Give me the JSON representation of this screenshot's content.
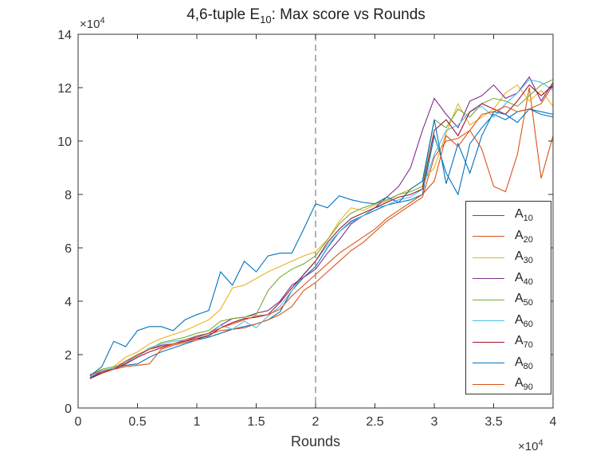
{
  "chart_data": {
    "type": "line",
    "title_main": "4,6-tuple E",
    "title_sub": "10",
    "title_rest": ": Max score vs Rounds",
    "xlabel": "Rounds",
    "ylabel": "",
    "x_exponent_label": "×10",
    "y_exponent_label": "×10",
    "exponent_power": "4",
    "xlim": [
      0,
      40000
    ],
    "ylim": [
      0,
      140000
    ],
    "xticks": [
      "0",
      "0.5",
      "1",
      "1.5",
      "2",
      "2.5",
      "3",
      "3.5",
      "4"
    ],
    "yticks": [
      "0",
      "2",
      "4",
      "6",
      "8",
      "10",
      "12",
      "14"
    ],
    "vline_x": 20000,
    "legend_position": "bottom-right",
    "grid": false,
    "x": [
      1000,
      2000,
      3000,
      4000,
      5000,
      6000,
      7000,
      8000,
      9000,
      10000,
      11000,
      12000,
      13000,
      14000,
      15000,
      16000,
      17000,
      18000,
      19000,
      20000,
      21000,
      22000,
      23000,
      24000,
      25000,
      26000,
      27000,
      28000,
      29000,
      30000,
      31000,
      32000,
      33000,
      34000,
      35000,
      36000,
      37000,
      38000,
      39000,
      40000
    ],
    "series": [
      {
        "name_base": "A",
        "name_sub": "10",
        "color": "#0072BD",
        "values": [
          11500,
          13500,
          15000,
          16000,
          16500,
          19000,
          21000,
          22500,
          24000,
          25500,
          26500,
          28000,
          29500,
          30500,
          31500,
          33000,
          36000,
          44000,
          49000,
          53000,
          60000,
          66000,
          70000,
          72000,
          74000,
          76000,
          77000,
          78000,
          80000,
          102000,
          88000,
          80000,
          99000,
          105000,
          110000,
          108000,
          111000,
          112000,
          110000,
          109000
        ]
      },
      {
        "name_base": "A",
        "name_sub": "20",
        "color": "#D95319",
        "values": [
          12500,
          14000,
          14500,
          15500,
          16000,
          16500,
          22000,
          23500,
          24500,
          25500,
          27500,
          29000,
          29500,
          30000,
          31500,
          33000,
          35000,
          38000,
          44000,
          47000,
          51000,
          55000,
          59000,
          62000,
          66000,
          70000,
          73000,
          76000,
          79000,
          94000,
          100000,
          101000,
          104000,
          97000,
          83000,
          81000,
          95000,
          120000,
          86000,
          102000
        ]
      },
      {
        "name_base": "A",
        "name_sub": "30",
        "color": "#EDB120",
        "values": [
          12500,
          14500,
          15500,
          19000,
          21000,
          24000,
          26000,
          27500,
          29000,
          31000,
          33000,
          37000,
          45000,
          46000,
          48500,
          51000,
          53000,
          55000,
          57000,
          58500,
          63000,
          70000,
          75000,
          74000,
          76000,
          77500,
          80000,
          82000,
          85000,
          90000,
          103000,
          114000,
          106000,
          109000,
          112000,
          118000,
          121000,
          115000,
          119000,
          113000
        ]
      },
      {
        "name_base": "A",
        "name_sub": "40",
        "color": "#7E2F8E",
        "values": [
          11000,
          13500,
          15000,
          17500,
          19500,
          22000,
          23500,
          24000,
          25500,
          27000,
          28000,
          31000,
          33500,
          34000,
          35500,
          36500,
          40000,
          46000,
          49000,
          52000,
          58000,
          63000,
          69000,
          72000,
          75000,
          79000,
          83000,
          90000,
          104000,
          116000,
          110000,
          105000,
          115000,
          117000,
          121000,
          116000,
          118000,
          124000,
          115000,
          122000
        ]
      },
      {
        "name_base": "A",
        "name_sub": "50",
        "color": "#77AC30",
        "values": [
          12000,
          14500,
          15500,
          16500,
          20000,
          22000,
          24500,
          25500,
          26500,
          28000,
          29000,
          32500,
          33500,
          34000,
          35000,
          44000,
          49000,
          52000,
          54000,
          57000,
          63000,
          69000,
          73000,
          75000,
          76500,
          78000,
          80000,
          81000,
          83000,
          108000,
          105000,
          112000,
          109000,
          114000,
          116000,
          115000,
          113000,
          117000,
          121000,
          123000
        ]
      },
      {
        "name_base": "A",
        "name_sub": "60",
        "color": "#4DBEEE",
        "values": [
          12000,
          14000,
          15000,
          17000,
          19500,
          22500,
          24000,
          25000,
          25500,
          26000,
          27500,
          31000,
          29500,
          32500,
          30000,
          34500,
          38000,
          44000,
          50000,
          55000,
          61000,
          66000,
          69500,
          72000,
          75000,
          76000,
          78000,
          79000,
          82000,
          95000,
          104000,
          106000,
          111000,
          113000,
          109000,
          114000,
          118000,
          123000,
          122000,
          119000
        ]
      },
      {
        "name_base": "A",
        "name_sub": "70",
        "color": "#A2142F",
        "values": [
          11000,
          13000,
          14500,
          16500,
          19000,
          21000,
          22500,
          24000,
          25000,
          26000,
          27000,
          30000,
          32000,
          33500,
          34000,
          35000,
          39500,
          45000,
          50000,
          55000,
          62000,
          67000,
          71000,
          73000,
          75000,
          77000,
          79000,
          80000,
          82000,
          104000,
          108000,
          102000,
          111000,
          114000,
          112000,
          110000,
          115000,
          121000,
          117000,
          121000
        ]
      },
      {
        "name_base": "A",
        "name_sub": "80",
        "color": "#0072BD",
        "values": [
          12000,
          15500,
          25000,
          23000,
          29000,
          30500,
          30500,
          29000,
          33000,
          35000,
          36500,
          51000,
          46000,
          55000,
          51000,
          57000,
          58000,
          58000,
          67000,
          76500,
          75000,
          79500,
          78000,
          77000,
          76500,
          79000,
          77000,
          82000,
          85000,
          108000,
          84000,
          99000,
          88000,
          102000,
          111000,
          110000,
          107000,
          112000,
          111000,
          110000
        ]
      },
      {
        "name_base": "A",
        "name_sub": "90",
        "color": "#D95319",
        "values": [
          12500,
          13500,
          14500,
          17500,
          20000,
          22000,
          23000,
          24000,
          25500,
          26500,
          28000,
          30000,
          31500,
          33000,
          34500,
          35000,
          37000,
          42000,
          46000,
          50000,
          54000,
          58000,
          61000,
          64000,
          67000,
          71000,
          74000,
          77000,
          80000,
          85000,
          102000,
          98000,
          104000,
          110000,
          111000,
          113000,
          111000,
          112000,
          114000,
          121000
        ]
      }
    ]
  }
}
